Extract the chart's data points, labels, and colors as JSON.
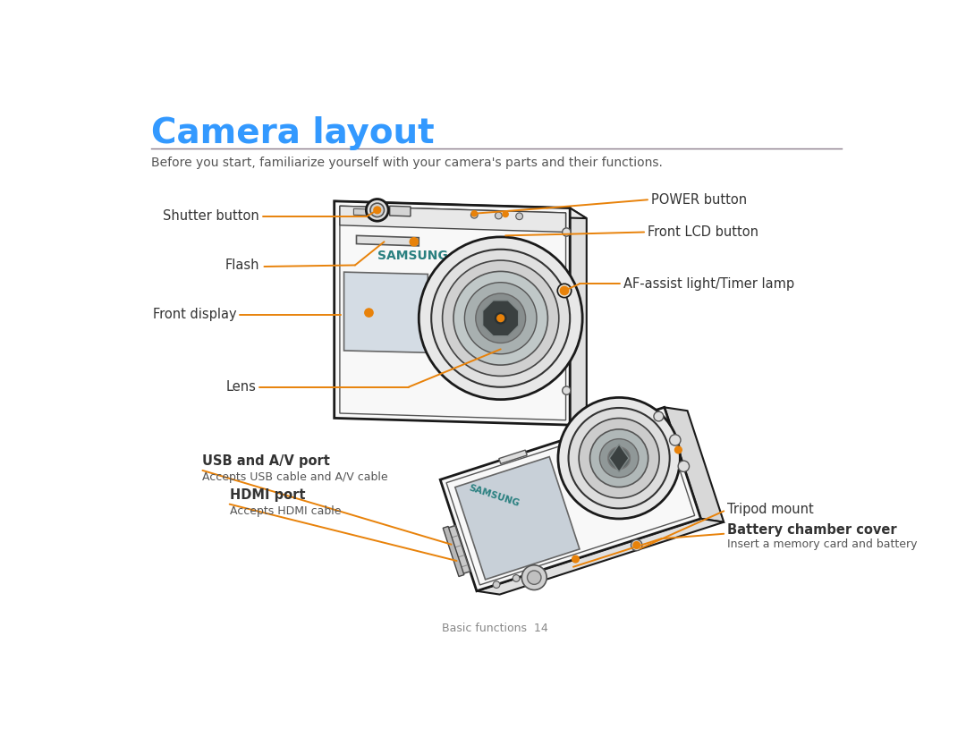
{
  "title": "Camera layout",
  "title_color": "#3399FF",
  "subtitle": "Before you start, familiarize yourself with your camera's parts and their functions.",
  "subtitle_color": "#555555",
  "line_color": "#8B7D8B",
  "annotation_color": "#E8820A",
  "label_color": "#333333",
  "samsung_color": "#2a8080",
  "bg_color": "#FFFFFF",
  "footer": "Basic functions  14",
  "footer_color": "#888888"
}
